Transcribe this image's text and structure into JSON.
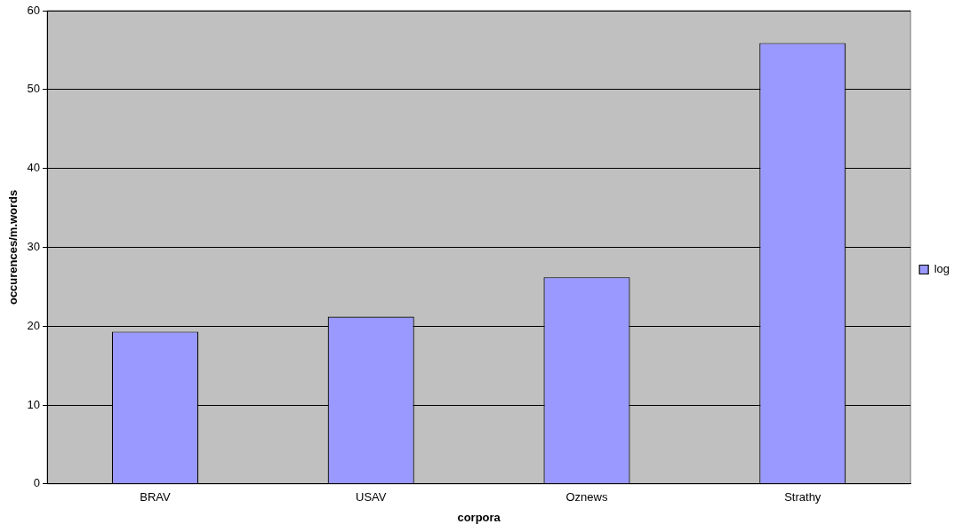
{
  "chart_data": {
    "type": "bar",
    "xlabel": "corpora",
    "ylabel": "occurences/m.words",
    "categories": [
      "BRAV",
      "USAV",
      "Oznews",
      "Strathy"
    ],
    "series": [
      {
        "name": "log",
        "color": "#9999ff",
        "values": [
          19.3,
          21.2,
          26.2,
          55.9
        ]
      }
    ],
    "ylim": [
      0,
      60
    ],
    "yticks": [
      0,
      10,
      20,
      30,
      40,
      50,
      60
    ],
    "grid": "y",
    "legend": "right"
  }
}
